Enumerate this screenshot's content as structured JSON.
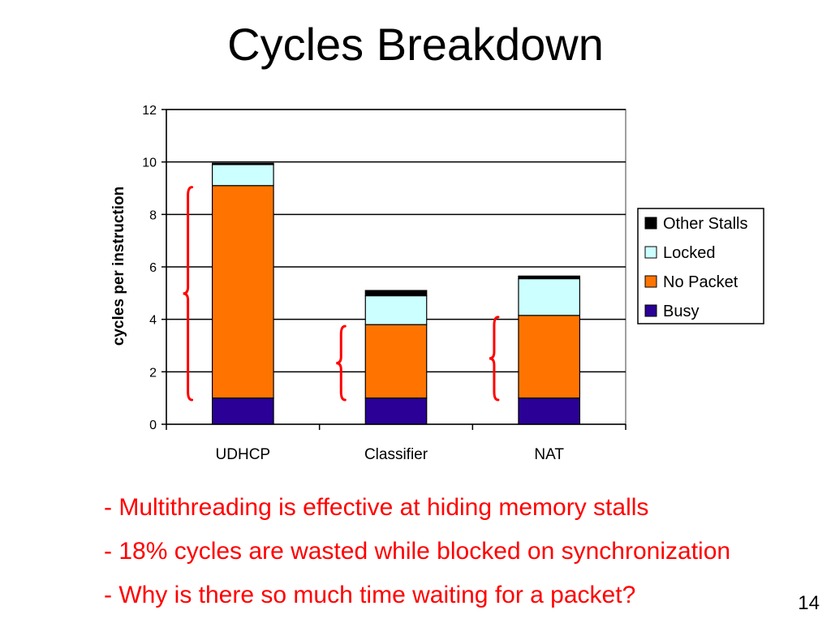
{
  "slide": {
    "title": "Cycles Breakdown",
    "page_number": "14",
    "bullets": [
      "- Multithreading is effective at hiding memory stalls",
      "- 18% cycles are wasted while blocked on synchronization",
      "- Why is there so much time waiting for a packet?"
    ],
    "bullet_color": "#ff0000",
    "brace_color": "#ff0000"
  },
  "chart_data": {
    "type": "bar",
    "stacked": true,
    "categories": [
      "UDHCP",
      "Classifier",
      "NAT"
    ],
    "series": [
      {
        "name": "Busy",
        "color": "#2a0096",
        "values": [
          1.0,
          1.0,
          1.0
        ]
      },
      {
        "name": "No Packet",
        "color": "#ff7400",
        "values": [
          8.1,
          2.8,
          3.15
        ]
      },
      {
        "name": "Locked",
        "color": "#ccffff",
        "values": [
          0.8,
          1.1,
          1.4
        ]
      },
      {
        "name": "Other Stalls",
        "color": "#000000",
        "values": [
          0.05,
          0.2,
          0.1
        ]
      }
    ],
    "ylabel": "cycles per instruction",
    "ylim": [
      0,
      12
    ],
    "yticks": [
      0,
      2,
      4,
      6,
      8,
      10,
      12
    ],
    "grid": true,
    "legend": "right",
    "legend_order": [
      "Other Stalls",
      "Locked",
      "No Packet",
      "Busy"
    ]
  }
}
